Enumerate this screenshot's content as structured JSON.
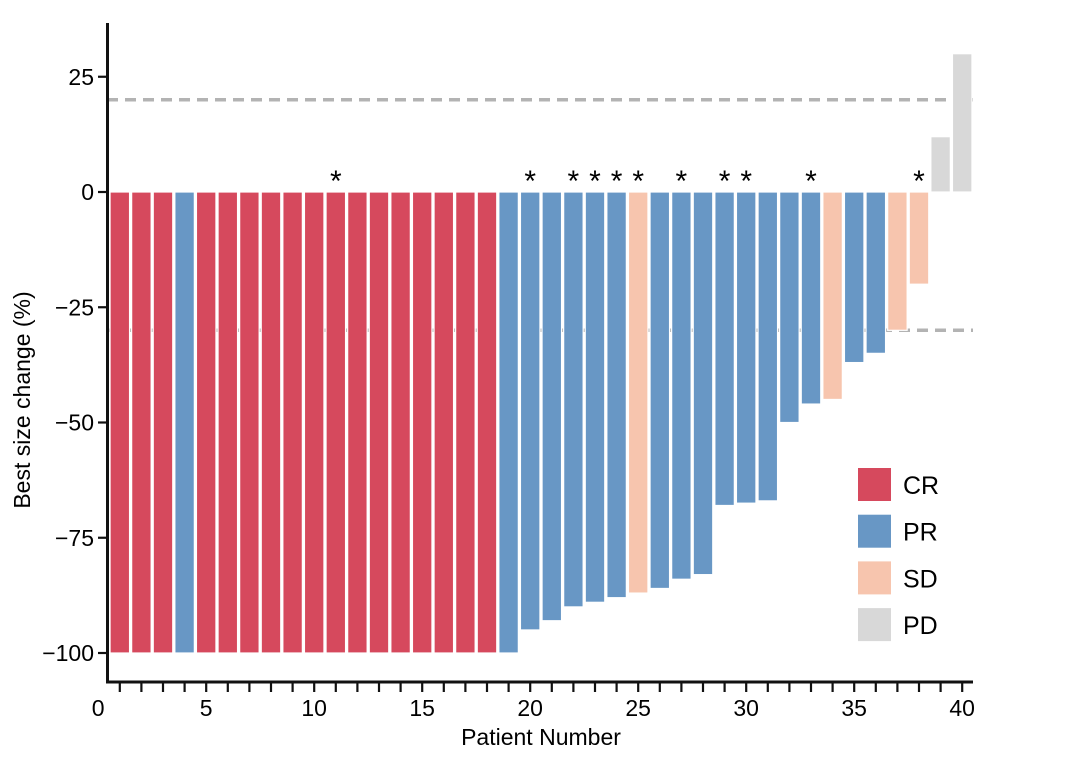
{
  "chart_data": {
    "type": "bar",
    "subtype": "waterfall-tumor-response",
    "title": "",
    "xlabel": "Patient Number",
    "ylabel": "Best size change (%)",
    "x_tick_labels": [
      "0",
      "5",
      "10",
      "15",
      "20",
      "25",
      "30",
      "35",
      "40"
    ],
    "x_tick_values": [
      0,
      5,
      10,
      15,
      20,
      25,
      30,
      35,
      40
    ],
    "x_minor_tick_step": 1,
    "x_range": [
      0.5,
      40.5
    ],
    "y_tick_labels": [
      "25",
      "0",
      "−25",
      "−50",
      "−75",
      "−100"
    ],
    "y_tick_values": [
      25,
      0,
      -25,
      -50,
      -75,
      -100
    ],
    "ylim": [
      -106,
      37
    ],
    "reference_lines": [
      20,
      -30
    ],
    "reference_line_color": "#b3b3b3",
    "grid": "off",
    "legend_position": "inside-right",
    "legend": [
      {
        "label": "CR",
        "color": "#d6495d"
      },
      {
        "label": "PR",
        "color": "#6897c5"
      },
      {
        "label": "SD",
        "color": "#f7c5ae"
      },
      {
        "label": "PD",
        "color": "#d8d8d8"
      }
    ],
    "star_annotation_glyph": "*",
    "starred_patients": [
      11,
      20,
      22,
      23,
      24,
      25,
      27,
      29,
      30,
      33,
      38
    ],
    "patients": [
      {
        "id": 1,
        "response": "CR",
        "value": -100
      },
      {
        "id": 2,
        "response": "CR",
        "value": -100
      },
      {
        "id": 3,
        "response": "CR",
        "value": -100
      },
      {
        "id": 4,
        "response": "PR",
        "value": -100
      },
      {
        "id": 5,
        "response": "CR",
        "value": -100
      },
      {
        "id": 6,
        "response": "CR",
        "value": -100
      },
      {
        "id": 7,
        "response": "CR",
        "value": -100
      },
      {
        "id": 8,
        "response": "CR",
        "value": -100
      },
      {
        "id": 9,
        "response": "CR",
        "value": -100
      },
      {
        "id": 10,
        "response": "CR",
        "value": -100
      },
      {
        "id": 11,
        "response": "CR",
        "value": -100
      },
      {
        "id": 12,
        "response": "CR",
        "value": -100
      },
      {
        "id": 13,
        "response": "CR",
        "value": -100
      },
      {
        "id": 14,
        "response": "CR",
        "value": -100
      },
      {
        "id": 15,
        "response": "CR",
        "value": -100
      },
      {
        "id": 16,
        "response": "CR",
        "value": -100
      },
      {
        "id": 17,
        "response": "CR",
        "value": -100
      },
      {
        "id": 18,
        "response": "CR",
        "value": -100
      },
      {
        "id": 19,
        "response": "PR",
        "value": -100
      },
      {
        "id": 20,
        "response": "PR",
        "value": -95
      },
      {
        "id": 21,
        "response": "PR",
        "value": -93
      },
      {
        "id": 22,
        "response": "PR",
        "value": -90
      },
      {
        "id": 23,
        "response": "PR",
        "value": -89
      },
      {
        "id": 24,
        "response": "PR",
        "value": -88
      },
      {
        "id": 25,
        "response": "SD",
        "value": -87
      },
      {
        "id": 26,
        "response": "PR",
        "value": -86
      },
      {
        "id": 27,
        "response": "PR",
        "value": -84
      },
      {
        "id": 28,
        "response": "PR",
        "value": -83
      },
      {
        "id": 29,
        "response": "PR",
        "value": -68
      },
      {
        "id": 30,
        "response": "PR",
        "value": -67.5
      },
      {
        "id": 31,
        "response": "PR",
        "value": -67
      },
      {
        "id": 32,
        "response": "PR",
        "value": -50
      },
      {
        "id": 33,
        "response": "PR",
        "value": -46
      },
      {
        "id": 34,
        "response": "SD",
        "value": -45
      },
      {
        "id": 35,
        "response": "PR",
        "value": -37
      },
      {
        "id": 36,
        "response": "PR",
        "value": -35
      },
      {
        "id": 37,
        "response": "SD",
        "value": -30
      },
      {
        "id": 38,
        "response": "SD",
        "value": -20
      },
      {
        "id": 39,
        "response": "PD",
        "value": 12
      },
      {
        "id": 40,
        "response": "PD",
        "value": 30
      }
    ]
  }
}
